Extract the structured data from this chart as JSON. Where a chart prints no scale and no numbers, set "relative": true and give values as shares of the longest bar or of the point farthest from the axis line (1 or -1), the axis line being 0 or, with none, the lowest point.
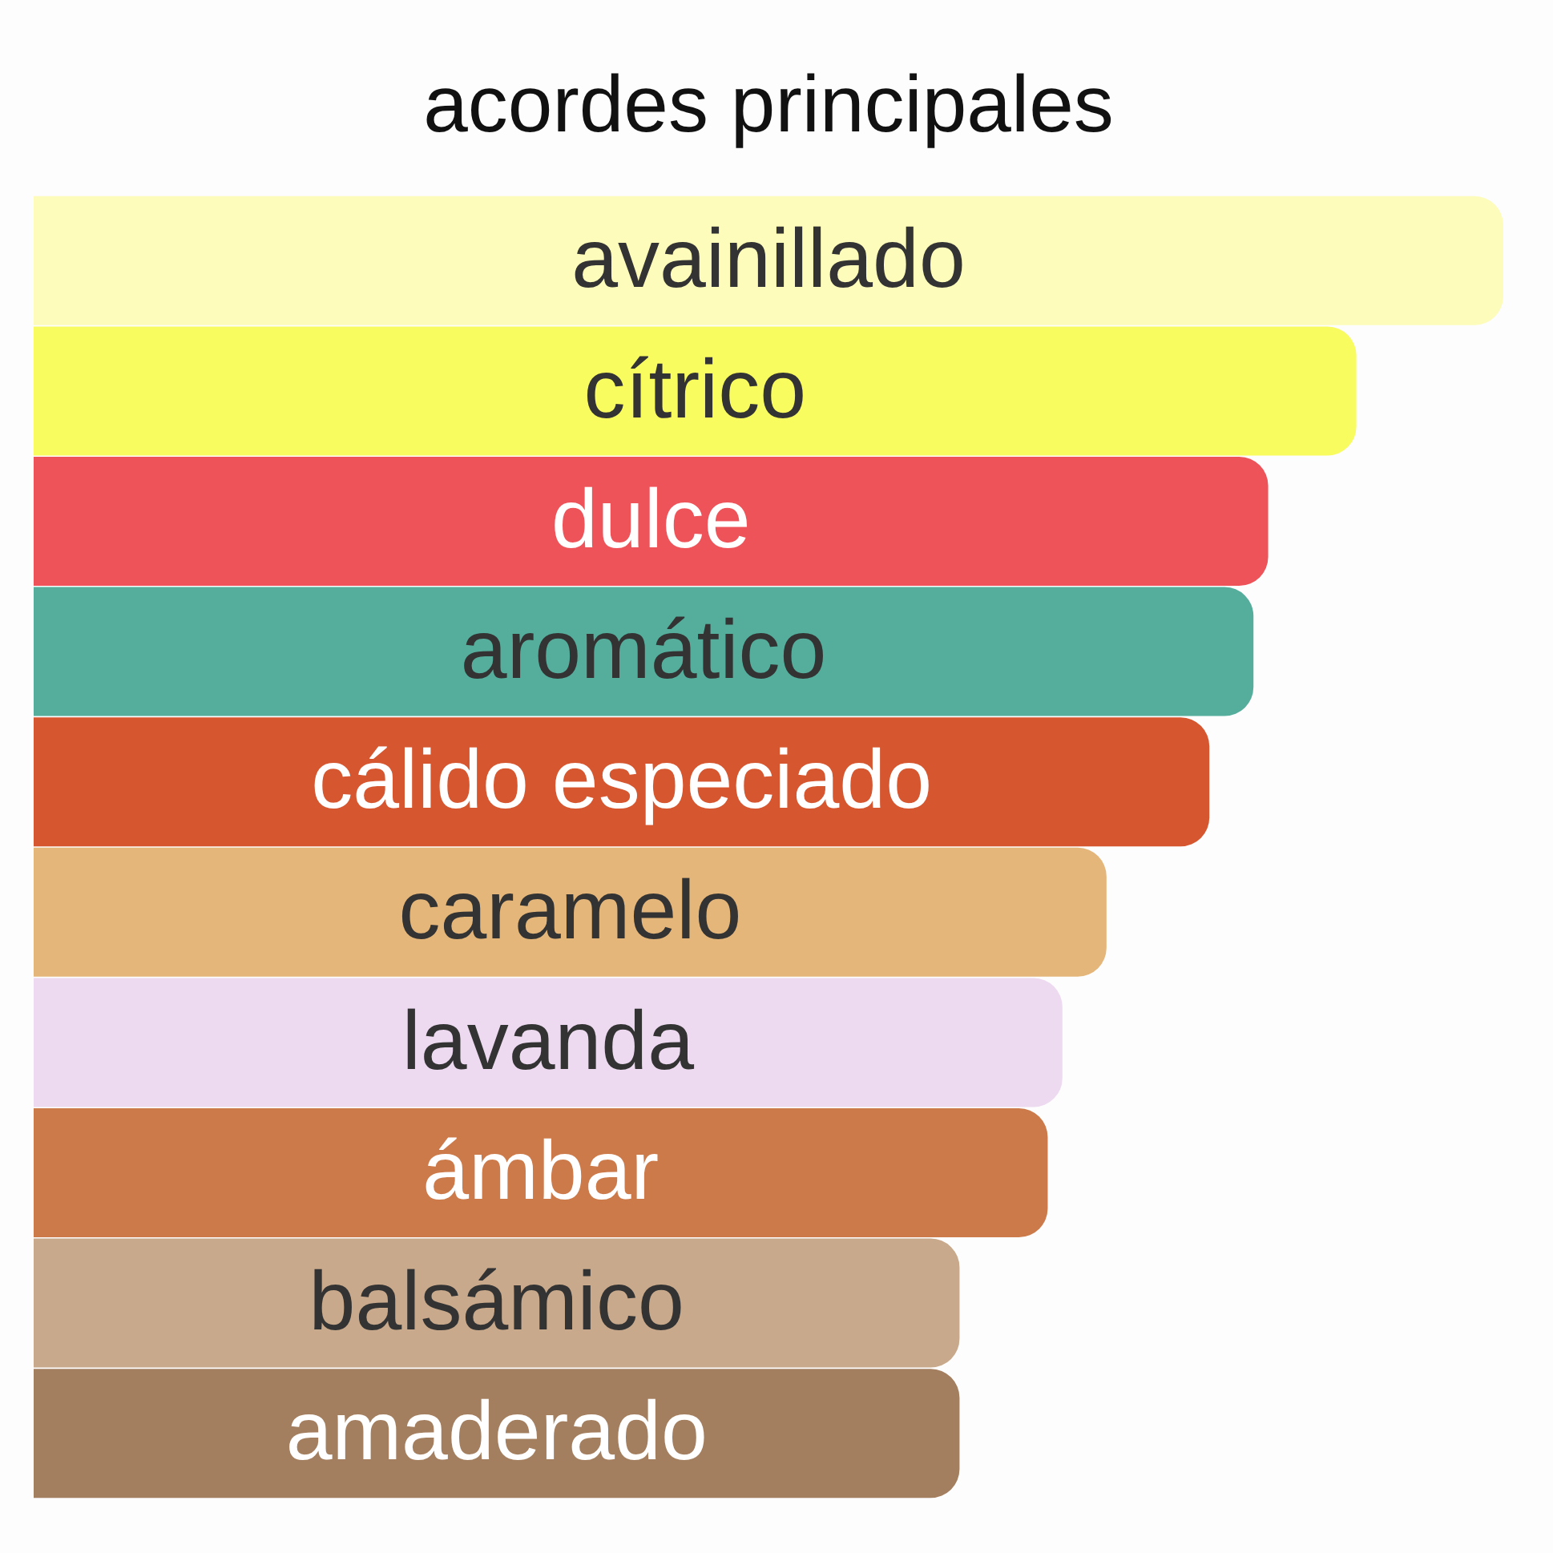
{
  "chart_data": {
    "type": "bar",
    "orientation": "horizontal",
    "relative": true,
    "title": "acordes principales",
    "categories": [
      "avainillado",
      "cítrico",
      "dulce",
      "aromático",
      "cálido especiado",
      "caramelo",
      "lavanda",
      "ámbar",
      "balsámico",
      "amaderado"
    ],
    "values": [
      1,
      0.9,
      0.84,
      0.83,
      0.8,
      0.73,
      0.7,
      0.69,
      0.63,
      0.63
    ],
    "colors": [
      "#fdfcba",
      "#f9fc5e",
      "#ef535a",
      "#55ae9c",
      "#d6562f",
      "#e5b67a",
      "#eddaf0",
      "#cd7a4b",
      "#c8a98b",
      "#a37e5f"
    ],
    "tick_labels": "y"
  }
}
